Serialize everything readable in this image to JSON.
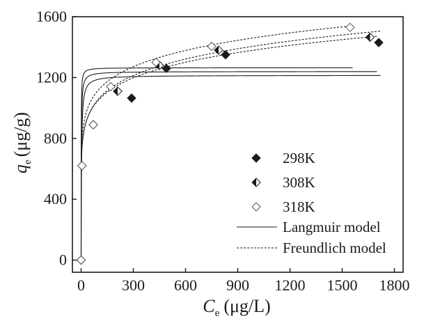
{
  "chart_data": {
    "type": "scatter",
    "ylabel_main": "q",
    "ylabel_sub": "e",
    "ylabel_unit": "(μg/g)",
    "xlabel_main": "C",
    "xlabel_sub": "e",
    "xlabel_unit": "(μg/L)",
    "xlim": [
      -50,
      1850
    ],
    "ylim": [
      -80,
      1600
    ],
    "x_ticks": [
      0,
      300,
      600,
      900,
      1200,
      1500,
      1800
    ],
    "y_ticks": [
      0,
      400,
      800,
      1200,
      1600
    ],
    "grid": false,
    "legend_position": "bottom-right",
    "series": [
      {
        "name": "298K",
        "marker": "filled-diamond",
        "points": [
          [
            0,
            0
          ],
          [
            5,
            620
          ],
          [
            70,
            890
          ],
          [
            210,
            1110
          ],
          [
            290,
            1065
          ],
          [
            490,
            1260
          ],
          [
            830,
            1350
          ],
          [
            1710,
            1430
          ]
        ],
        "langmuir": {
          "qmax": 1215,
          "k": 0.45,
          "xmax": 1720
        },
        "freundlich": {
          "kf": 600,
          "n": 8.1,
          "xmax": 1720
        }
      },
      {
        "name": "308K",
        "marker": "half-filled-diamond",
        "points": [
          [
            0,
            0
          ],
          [
            5,
            620
          ],
          [
            70,
            890
          ],
          [
            210,
            1110
          ],
          [
            450,
            1280
          ],
          [
            790,
            1380
          ],
          [
            1660,
            1465
          ]
        ],
        "langmuir": {
          "qmax": 1240,
          "k": 0.9,
          "xmax": 1700
        },
        "freundlich": {
          "kf": 610,
          "n": 8.45,
          "xmax": 1700
        }
      },
      {
        "name": "318K",
        "marker": "open-diamond",
        "points": [
          [
            0,
            0
          ],
          [
            5,
            620
          ],
          [
            70,
            890
          ],
          [
            170,
            1140
          ],
          [
            430,
            1300
          ],
          [
            750,
            1405
          ],
          [
            1545,
            1530
          ]
        ],
        "langmuir": {
          "qmax": 1265,
          "k": 2.0,
          "xmax": 1560
        },
        "freundlich": {
          "kf": 655,
          "n": 8.6,
          "xmax": 1560
        }
      }
    ],
    "legend": {
      "langmuir_label": "Langmuir model",
      "freundlich_label": "Freundlich model"
    }
  }
}
